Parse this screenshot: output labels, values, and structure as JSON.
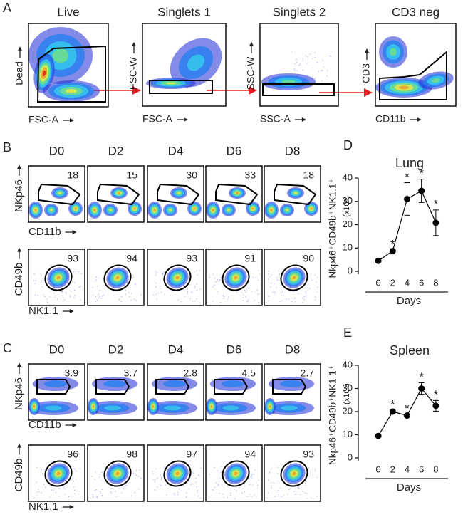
{
  "panel_labels": {
    "a": "A",
    "b": "B",
    "c": "C"
  },
  "gating": [
    {
      "title": "Live",
      "y_label": "Dead",
      "x_label": "FSC-A"
    },
    {
      "title": "Singlets 1",
      "y_label": "FSC-W",
      "x_label": "FSC-A"
    },
    {
      "title": "Singlets 2",
      "y_label": "SSC-W",
      "x_label": "SSC-A"
    },
    {
      "title": "CD3 neg",
      "y_label": "CD3",
      "x_label": "CD11b"
    }
  ],
  "lung_flow": {
    "days": [
      "D0",
      "D2",
      "D4",
      "D6",
      "D8"
    ],
    "row1": {
      "y_label": "NKp46",
      "x_label": "CD11b",
      "percent": [
        18,
        15,
        30,
        33,
        18
      ]
    },
    "row2": {
      "y_label": "CD49b",
      "x_label": "NK1.1",
      "percent": [
        93,
        94,
        93,
        91,
        90
      ]
    }
  },
  "spleen_flow": {
    "days": [
      "D0",
      "D2",
      "D4",
      "D6",
      "D8"
    ],
    "row1": {
      "y_label": "NKp46",
      "x_label": "CD11b",
      "percent": [
        3.9,
        3.7,
        2.8,
        4.5,
        2.7
      ]
    },
    "row2": {
      "y_label": "CD49b",
      "x_label": "NK1.1",
      "percent": [
        96,
        98,
        97,
        94,
        93
      ]
    }
  },
  "chart_data": [
    {
      "type": "line",
      "panel": "D",
      "title": "Lung",
      "y_label": "Nkp46⁺CD49b⁺NK1.1⁺",
      "y_unit": "(x10⁵)",
      "x_label": "Days",
      "x": [
        0,
        2,
        4,
        6,
        8
      ],
      "values": [
        4.5,
        8.7,
        31,
        34.5,
        20.8
      ],
      "errors": [
        0.6,
        0.5,
        7,
        5,
        5.5
      ],
      "significance": [
        null,
        "*",
        "*",
        "*",
        "*"
      ],
      "color": "#000000",
      "xlim": [
        -1,
        9.5
      ],
      "xticks": [
        0,
        2,
        4,
        6,
        8
      ],
      "ylim": [
        0,
        40
      ],
      "yticks": [
        0,
        10,
        20,
        30,
        40
      ]
    },
    {
      "type": "line",
      "panel": "E",
      "title": "Spleen",
      "y_label": "Nkp46⁺CD49b⁺NK1.1⁺",
      "y_unit": "(x10⁵)",
      "x_label": "Days",
      "x": [
        0,
        2,
        4,
        6,
        8
      ],
      "values": [
        9.5,
        20,
        18.3,
        30,
        22.5
      ],
      "errors": [
        0.3,
        0.6,
        0.6,
        2.5,
        2.3
      ],
      "significance": [
        null,
        "*",
        "*",
        "*",
        "*"
      ],
      "color": "#000000",
      "xlim": [
        -1,
        9.5
      ],
      "xticks": [
        0,
        2,
        4,
        6,
        8
      ],
      "ylim": [
        0,
        40
      ],
      "yticks": [
        0,
        10,
        20,
        30,
        40
      ]
    }
  ]
}
